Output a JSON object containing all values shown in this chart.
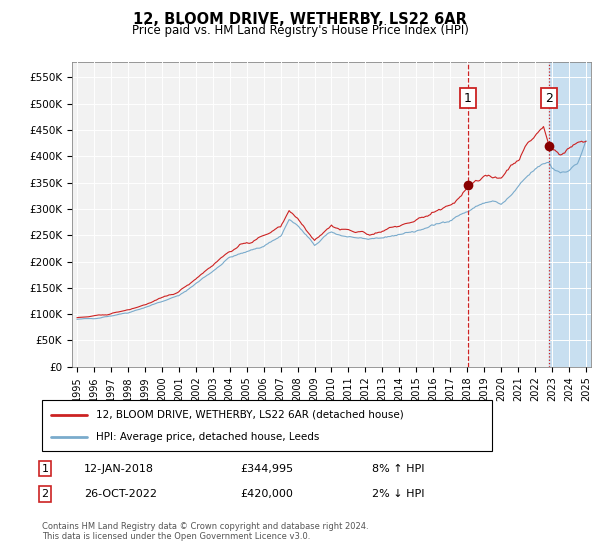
{
  "title": "12, BLOOM DRIVE, WETHERBY, LS22 6AR",
  "subtitle": "Price paid vs. HM Land Registry's House Price Index (HPI)",
  "legend_line1": "12, BLOOM DRIVE, WETHERBY, LS22 6AR (detached house)",
  "legend_line2": "HPI: Average price, detached house, Leeds",
  "annotation1_date": "12-JAN-2018",
  "annotation1_price": "£344,995",
  "annotation1_hpi": "8% ↑ HPI",
  "annotation1_year": 2018.04,
  "annotation1_value": 344995,
  "annotation2_date": "26-OCT-2022",
  "annotation2_price": "£420,000",
  "annotation2_hpi": "2% ↓ HPI",
  "annotation2_year": 2022.82,
  "annotation2_value": 420000,
  "line_color_property": "#cc2222",
  "line_color_hpi": "#7aabcc",
  "shade_color": "#c8dff0",
  "background_plot": "#f0f0f0",
  "background_fig": "#ffffff",
  "ylim": [
    0,
    580000
  ],
  "xlim_start": 1994.7,
  "xlim_end": 2025.3,
  "footer": "Contains HM Land Registry data © Crown copyright and database right 2024.\nThis data is licensed under the Open Government Licence v3.0.",
  "yticks": [
    0,
    50000,
    100000,
    150000,
    200000,
    250000,
    300000,
    350000,
    400000,
    450000,
    500000,
    550000
  ],
  "ytick_labels": [
    "£0",
    "£50K",
    "£100K",
    "£150K",
    "£200K",
    "£250K",
    "£300K",
    "£350K",
    "£400K",
    "£450K",
    "£500K",
    "£550K"
  ],
  "xticks": [
    1995,
    1996,
    1997,
    1998,
    1999,
    2000,
    2001,
    2002,
    2003,
    2004,
    2005,
    2006,
    2007,
    2008,
    2009,
    2010,
    2011,
    2012,
    2013,
    2014,
    2015,
    2016,
    2017,
    2018,
    2019,
    2020,
    2021,
    2022,
    2023,
    2024,
    2025
  ]
}
